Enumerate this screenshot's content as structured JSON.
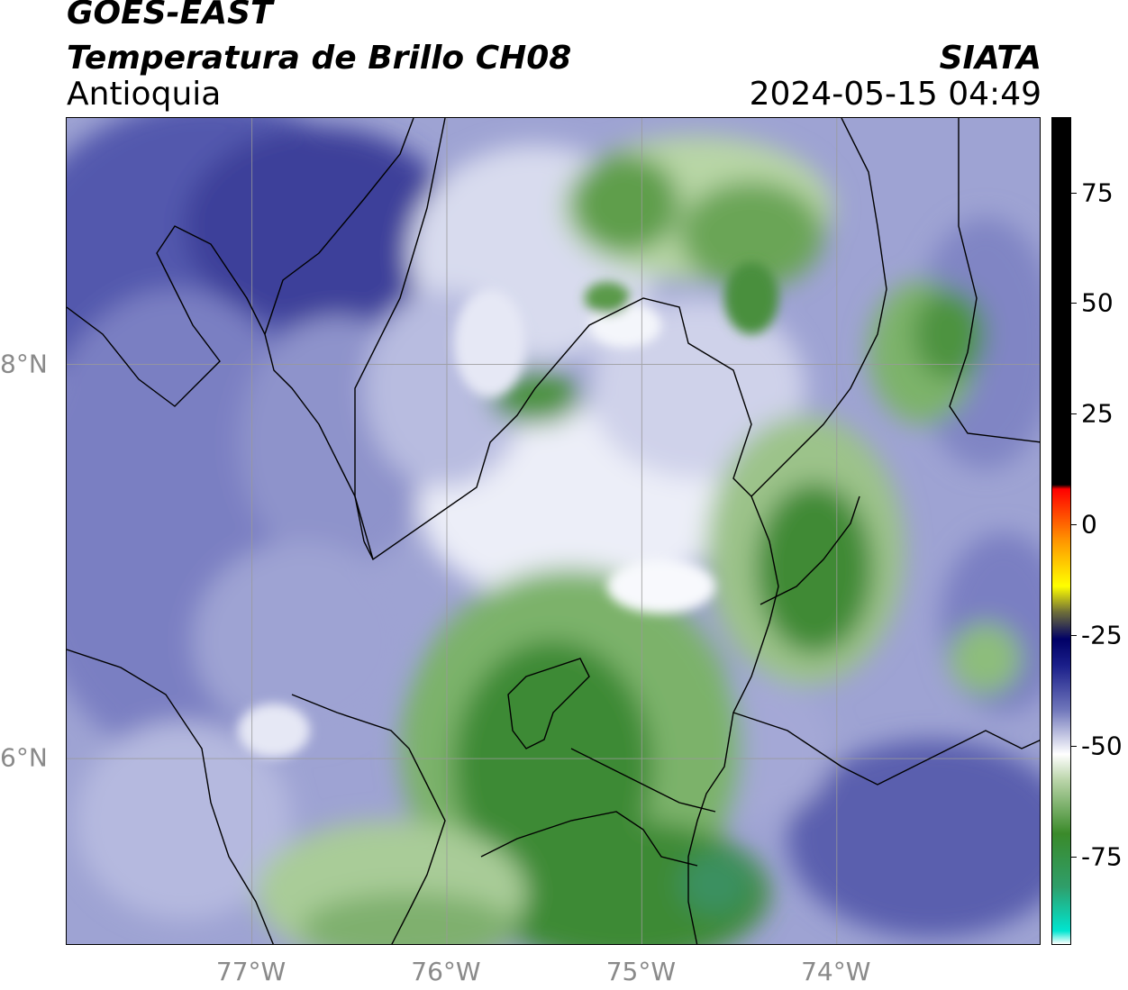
{
  "header": {
    "title": "GOES-EAST",
    "subtitle": "Temperatura de Brillo CH08",
    "region": "Antioquia",
    "organization": "SIATA",
    "timestamp": "2024-05-15 04:49"
  },
  "map": {
    "lon_range": [
      -77.95,
      -72.95
    ],
    "lat_range": [
      5.05,
      9.25
    ],
    "lon_ticks": [
      {
        "value": -77,
        "label": "77°W"
      },
      {
        "value": -76,
        "label": "76°W"
      },
      {
        "value": -75,
        "label": "75°W"
      },
      {
        "value": -74,
        "label": "74°W"
      }
    ],
    "lat_ticks": [
      {
        "value": 8,
        "label": "8°N"
      },
      {
        "value": 6,
        "label": "6°N"
      }
    ],
    "gridlines": true,
    "variable": "brightness temperature (°C)"
  },
  "colorbar": {
    "range": [
      -95,
      92
    ],
    "ticks": [
      {
        "value": 75,
        "label": "75"
      },
      {
        "value": 50,
        "label": "50"
      },
      {
        "value": 25,
        "label": "25"
      },
      {
        "value": 0,
        "label": "0"
      },
      {
        "value": -25,
        "label": "-25"
      },
      {
        "value": -50,
        "label": "-50"
      },
      {
        "value": -75,
        "label": "-75"
      }
    ],
    "stops": [
      {
        "value": -95,
        "color": "#ffffff"
      },
      {
        "value": -92,
        "color": "#00e5d0"
      },
      {
        "value": -82,
        "color": "#2f9e6a"
      },
      {
        "value": -70,
        "color": "#3a8a2a"
      },
      {
        "value": -58,
        "color": "#b9d4a8"
      },
      {
        "value": -52,
        "color": "#ffffff"
      },
      {
        "value": -42,
        "color": "#7077bb"
      },
      {
        "value": -32,
        "color": "#1b1f8a"
      },
      {
        "value": -26,
        "color": "#000066"
      },
      {
        "value": -20,
        "color": "#6b6b3a"
      },
      {
        "value": -14,
        "color": "#ffff00"
      },
      {
        "value": -4,
        "color": "#ff9900"
      },
      {
        "value": 8,
        "color": "#ff0000"
      },
      {
        "value": 9,
        "color": "#000000"
      },
      {
        "value": 92,
        "color": "#000000"
      }
    ]
  }
}
